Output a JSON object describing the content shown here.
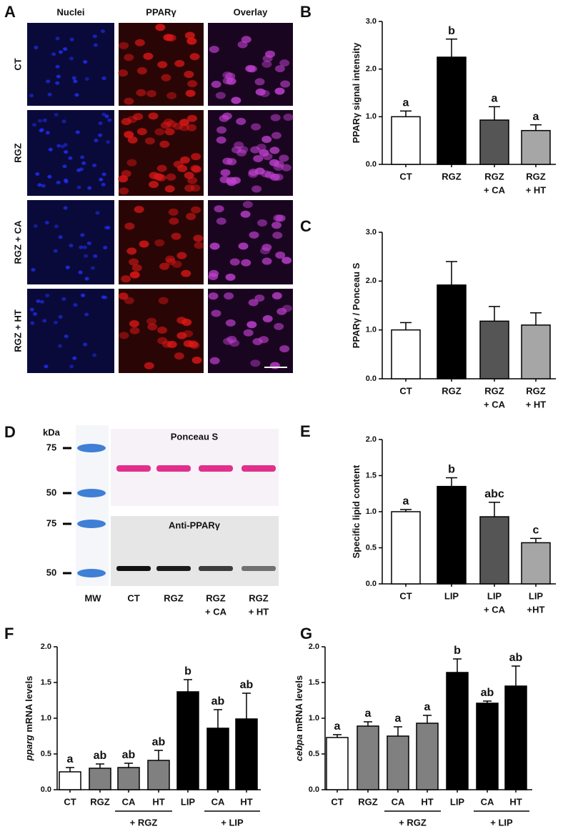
{
  "panel_a": {
    "panel": "A",
    "columns": [
      "Nuclei",
      "PPARγ",
      "Overlay"
    ],
    "rows": [
      "CT",
      "RGZ",
      "RGZ + CA",
      "RGZ + HT"
    ]
  },
  "panel_d": {
    "panel": "D",
    "unit": "kDa",
    "top_markers": [
      "75",
      "50"
    ],
    "bottom_markers": [
      "75",
      "50"
    ],
    "top_title": "Ponceau S",
    "bottom_title": "Anti-PPARγ",
    "ladder": "MW",
    "lanes": [
      [
        "CT"
      ],
      [
        "RGZ"
      ],
      [
        "RGZ",
        "+ CA"
      ],
      [
        "RGZ",
        "+ HT"
      ]
    ]
  },
  "chart_data": [
    {
      "type": "bar",
      "panel": "B",
      "y_label": "PPARγ signal intensity",
      "categories": [
        [
          "CT"
        ],
        [
          "RGZ"
        ],
        [
          "RGZ",
          "+ CA"
        ],
        [
          "RGZ",
          "+ HT"
        ]
      ],
      "values": [
        1.0,
        2.25,
        0.93,
        0.71
      ],
      "errors": [
        0.12,
        0.38,
        0.28,
        0.12
      ],
      "letters": [
        "a",
        "b",
        "a",
        "a"
      ],
      "colors": [
        "#ffffff",
        "#000000",
        "#555555",
        "#a6a6a6"
      ],
      "ylim": [
        0,
        3
      ],
      "yticks": [
        {
          "value": 0,
          "label": "0.0"
        },
        {
          "value": 1,
          "label": "1.0"
        },
        {
          "value": 2,
          "label": "2.0"
        },
        {
          "value": 3,
          "label": "3.0"
        }
      ]
    },
    {
      "type": "bar",
      "panel": "C",
      "y_label": "PPARγ / Ponceau S",
      "categories": [
        [
          "CT"
        ],
        [
          "RGZ"
        ],
        [
          "RGZ",
          "+ CA"
        ],
        [
          "RGZ",
          "+ HT"
        ]
      ],
      "values": [
        1.0,
        1.92,
        1.18,
        1.1
      ],
      "errors": [
        0.15,
        0.48,
        0.3,
        0.25
      ],
      "colors": [
        "#ffffff",
        "#000000",
        "#555555",
        "#a6a6a6"
      ],
      "ylim": [
        0,
        3
      ],
      "yticks": [
        {
          "value": 0,
          "label": "0.0"
        },
        {
          "value": 1,
          "label": "1.0"
        },
        {
          "value": 2,
          "label": "2.0"
        },
        {
          "value": 3,
          "label": "3.0"
        }
      ]
    },
    {
      "type": "bar",
      "panel": "E",
      "y_label": "Specific lipid content",
      "categories": [
        [
          "CT"
        ],
        [
          "LIP"
        ],
        [
          "LIP",
          "+ CA"
        ],
        [
          "LIP",
          "+HT"
        ]
      ],
      "values": [
        1.0,
        1.35,
        0.93,
        0.57
      ],
      "errors": [
        0.03,
        0.12,
        0.2,
        0.06
      ],
      "letters": [
        "a",
        "b",
        "abc",
        "c"
      ],
      "colors": [
        "#ffffff",
        "#000000",
        "#555555",
        "#a6a6a6"
      ],
      "ylim": [
        0,
        2
      ],
      "yticks": [
        {
          "value": 0,
          "label": "0.0"
        },
        {
          "value": 0.5,
          "label": "0.5"
        },
        {
          "value": 1,
          "label": "1.0"
        },
        {
          "value": 1.5,
          "label": "1.5"
        },
        {
          "value": 2,
          "label": "2.0"
        }
      ]
    },
    {
      "type": "bar",
      "panel": "F",
      "y_label_gene": "pparg",
      "y_label": "mRNA levels",
      "categories": [
        [
          "CT"
        ],
        [
          "RGZ"
        ],
        [
          "CA"
        ],
        [
          "HT"
        ],
        [
          "LIP"
        ],
        [
          "CA"
        ],
        [
          "HT"
        ]
      ],
      "groups": [
        "+ RGZ",
        "+ LIP"
      ],
      "values": [
        0.25,
        0.3,
        0.31,
        0.41,
        1.37,
        0.86,
        0.99
      ],
      "errors": [
        0.06,
        0.06,
        0.06,
        0.14,
        0.17,
        0.26,
        0.36
      ],
      "letters": [
        "a",
        "ab",
        "ab",
        "ab",
        "b",
        "ab",
        "ab"
      ],
      "colors": [
        "#ffffff",
        "#808080",
        "#808080",
        "#808080",
        "#000000",
        "#000000",
        "#000000"
      ],
      "ylim": [
        0,
        2
      ],
      "yticks": [
        {
          "value": 0,
          "label": "0.0"
        },
        {
          "value": 0.5,
          "label": "0.5"
        },
        {
          "value": 1,
          "label": "1.0"
        },
        {
          "value": 1.5,
          "label": "1.5"
        },
        {
          "value": 2,
          "label": "2.0"
        }
      ]
    },
    {
      "type": "bar",
      "panel": "G",
      "y_label_gene": "cebpa",
      "y_label": "mRNA levels",
      "categories": [
        [
          "CT"
        ],
        [
          "RGZ"
        ],
        [
          "CA"
        ],
        [
          "HT"
        ],
        [
          "LIP"
        ],
        [
          "CA"
        ],
        [
          "HT"
        ]
      ],
      "groups": [
        "+ RGZ",
        "+ LIP"
      ],
      "values": [
        0.73,
        0.89,
        0.75,
        0.93,
        1.64,
        1.21,
        1.45
      ],
      "errors": [
        0.04,
        0.06,
        0.13,
        0.11,
        0.19,
        0.03,
        0.28
      ],
      "letters": [
        "a",
        "a",
        "a",
        "a",
        "b",
        "ab",
        "ab"
      ],
      "colors": [
        "#ffffff",
        "#808080",
        "#808080",
        "#808080",
        "#000000",
        "#000000",
        "#000000"
      ],
      "ylim": [
        0,
        2
      ],
      "yticks": [
        {
          "value": 0,
          "label": "0.0"
        },
        {
          "value": 0.5,
          "label": "0.5"
        },
        {
          "value": 1,
          "label": "1.0"
        },
        {
          "value": 1.5,
          "label": "1.5"
        },
        {
          "value": 2,
          "label": "2.0"
        }
      ]
    }
  ]
}
